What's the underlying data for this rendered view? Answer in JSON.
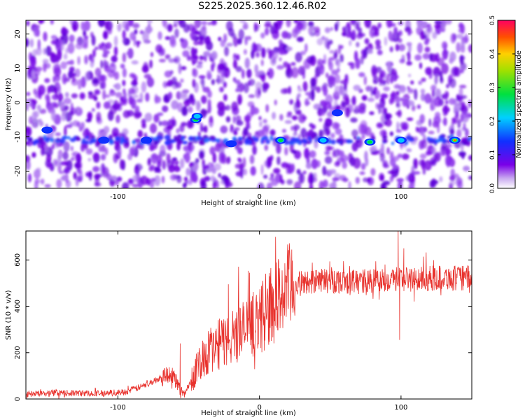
{
  "title": "S225.2025.360.12.46.R02",
  "colors": {
    "trace": "#e8322d",
    "axis": "#000000",
    "background_map": "#ffffff",
    "spectrum_low": "#a070e8"
  },
  "chart_data": [
    {
      "type": "heatmap",
      "name": "spectrogram",
      "xlabel": "Height of straight line (km)",
      "ylabel": "Frequency (Hz)",
      "xlim": [
        -165,
        150
      ],
      "ylim": [
        -25,
        24
      ],
      "x_ticks": [
        -100,
        0,
        100
      ],
      "x_tick_labels": [
        "-100",
        "0",
        "100"
      ],
      "y_ticks": [
        -20,
        -10,
        0,
        10,
        20
      ],
      "y_tick_labels": [
        "-20",
        "-10",
        "0",
        "10",
        "20"
      ],
      "band_frequency_hz": -11,
      "hot_spots": [
        {
          "x": -45,
          "y": -5,
          "amp": 0.22
        },
        {
          "x": -44,
          "y": -4,
          "amp": 0.18
        },
        {
          "x": 15,
          "y": -11,
          "amp": 0.2
        },
        {
          "x": 78,
          "y": -11.5,
          "amp": 0.25
        },
        {
          "x": 138,
          "y": -11,
          "amp": 0.45
        },
        {
          "x": -110,
          "y": -11,
          "amp": 0.12
        },
        {
          "x": -80,
          "y": -11,
          "amp": 0.12
        },
        {
          "x": -20,
          "y": -12,
          "amp": 0.12
        },
        {
          "x": 45,
          "y": -11,
          "amp": 0.14
        },
        {
          "x": 100,
          "y": -11,
          "amp": 0.14
        },
        {
          "x": -150,
          "y": -8,
          "amp": 0.1
        },
        {
          "x": 55,
          "y": -3,
          "amp": 0.12
        }
      ],
      "colorbar": {
        "label": "Normalized spectral amplitude",
        "range": [
          0.0,
          0.5
        ],
        "ticks": [
          0.0,
          0.1,
          0.2,
          0.3,
          0.4,
          0.5
        ],
        "tick_labels": [
          "0.0",
          "0.1",
          "0.2",
          "0.3",
          "0.4",
          "0.5"
        ]
      }
    },
    {
      "type": "line",
      "name": "snr",
      "xlabel": "Height of straight line (km)",
      "ylabel": "SNR (10 * v/v)",
      "xlim": [
        -165,
        150
      ],
      "ylim": [
        0,
        725
      ],
      "x_ticks": [
        -100,
        0,
        100
      ],
      "x_tick_labels": [
        "-100",
        "0",
        "100"
      ],
      "y_ticks": [
        0,
        200,
        400,
        600
      ],
      "y_tick_labels": [
        "0",
        "200",
        "400",
        "600"
      ],
      "series": [
        {
          "name": "SNR",
          "x": [
            -165,
            -150,
            -130,
            -110,
            -95,
            -85,
            -75,
            -65,
            -60,
            -56,
            -53,
            -50,
            -45,
            -40,
            -35,
            -30,
            -25,
            -20,
            -15,
            -10,
            -5,
            0,
            5,
            10,
            15,
            20,
            25,
            30,
            40,
            50,
            60,
            70,
            80,
            90,
            100,
            110,
            120,
            130,
            140,
            150
          ],
          "y": [
            20,
            25,
            25,
            25,
            30,
            50,
            75,
            110,
            95,
            35,
            20,
            60,
            120,
            180,
            210,
            230,
            250,
            265,
            285,
            300,
            320,
            345,
            375,
            410,
            450,
            475,
            490,
            500,
            510,
            510,
            510,
            505,
            510,
            515,
            520,
            515,
            520,
            525,
            520,
            525
          ],
          "spikes": [
            {
              "x": -56,
              "y": 240
            },
            {
              "x": -22,
              "y": 495
            },
            {
              "x": -7,
              "y": 545
            },
            {
              "x": 98,
              "y": 725
            },
            {
              "x": 99,
              "y": 255
            },
            {
              "x": 102,
              "y": 650
            }
          ]
        }
      ]
    }
  ]
}
